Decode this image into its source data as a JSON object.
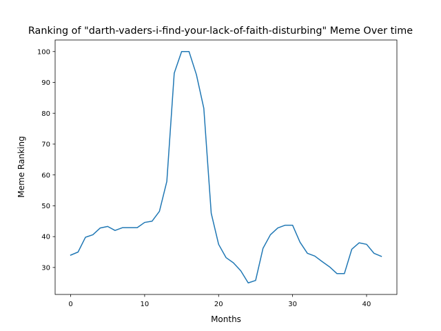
{
  "chart_data": {
    "type": "line",
    "title": "Ranking of \"darth-vaders-i-find-your-lack-of-faith-disturbing\" Meme Over time",
    "xlabel": "Months",
    "ylabel": "Meme Ranking",
    "xlim": [
      -2.1,
      44.1
    ],
    "ylim": [
      21.25,
      103.75
    ],
    "xticks": [
      0,
      10,
      20,
      30,
      40
    ],
    "yticks": [
      30,
      40,
      50,
      60,
      70,
      80,
      90,
      100
    ],
    "grid": false,
    "line_color": "#1f77b4",
    "series": [
      {
        "x": [
          0,
          1,
          2,
          3,
          4,
          5,
          6,
          7,
          8,
          9,
          10,
          11,
          12,
          13,
          14,
          15,
          16,
          17,
          18,
          19,
          20,
          21,
          22,
          23,
          24,
          25,
          26,
          27,
          28,
          29,
          30,
          31,
          32,
          33,
          34,
          35,
          36,
          37,
          38,
          39,
          40,
          41,
          42
        ],
        "values": [
          34.0,
          35.0,
          39.8,
          40.6,
          42.8,
          43.3,
          42.0,
          42.9,
          42.9,
          42.9,
          44.6,
          45.0,
          48.2,
          57.9,
          93.0,
          100,
          100,
          92.5,
          81.6,
          47.6,
          37.5,
          33.2,
          31.5,
          28.9,
          25.0,
          25.8,
          36.2,
          40.6,
          42.8,
          43.7,
          43.7,
          38.2,
          34.6,
          33.7,
          31.9,
          30.2,
          28.0,
          28.0,
          35.9,
          38.0,
          37.5,
          34.6,
          33.6
        ]
      }
    ]
  }
}
